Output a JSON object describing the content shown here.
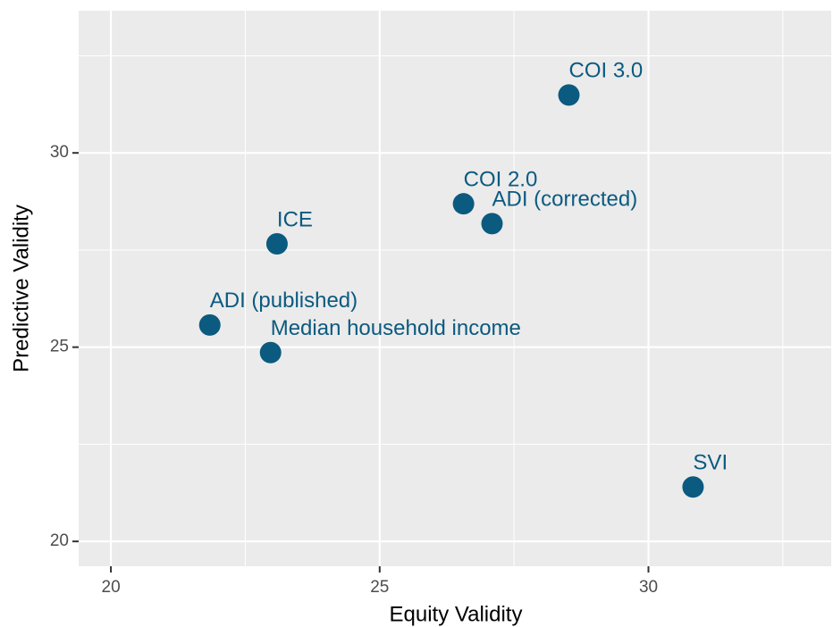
{
  "chart_data": {
    "type": "scatter",
    "x_label": "Equity Validity",
    "y_label": "Predictive Validity",
    "color": "#0b5a80",
    "labels": [
      "COI 3.0",
      "COI 2.0",
      "ADI (corrected)",
      "ICE",
      "ADI (published)",
      "Median household income",
      "SVI"
    ],
    "x": [
      28.52,
      26.56,
      27.09,
      23.09,
      21.84,
      22.97,
      30.83
    ],
    "values": [
      31.49,
      28.69,
      28.18,
      27.66,
      25.57,
      24.86,
      21.4
    ],
    "xlim": [
      19.4,
      33.4
    ],
    "ylim": [
      19.36,
      33.66
    ],
    "xticks": [
      20,
      25,
      30
    ],
    "yticks": [
      20,
      25,
      30
    ],
    "xminor": [
      22.5,
      27.5,
      32.5
    ],
    "yminor": [
      22.5,
      27.5,
      32.5
    ],
    "grid": true
  }
}
